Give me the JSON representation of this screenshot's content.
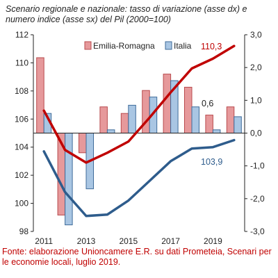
{
  "title_text": "Scenario regionale e nazionale: tasso di variazione (asse dx) e numero indice (asse sx) del Pil (2000=100)",
  "source_text": "Fonte: elaborazione Unioncamere E.R. su dati Prometeia, Scenari per le economie locali, luglio 2019.",
  "colors": {
    "emilia_bar_fill": "#e6999b",
    "emilia_bar_stroke": "#b84a4d",
    "italia_bar_fill": "#a9c6e3",
    "italia_bar_stroke": "#3e6b99",
    "emilia_line": "#c00000",
    "italia_line": "#2e5c8c"
  },
  "chart_data": {
    "type": "bar+line",
    "title": "Scenario regionale e nazionale: tasso di variazione (asse dx) e numero indice (asse sx) del Pil (2000=100)",
    "x_categories": [
      2011,
      2012,
      2013,
      2014,
      2015,
      2016,
      2017,
      2018,
      2019,
      2020
    ],
    "x_tick_labels": [
      "2011",
      "2013",
      "2015",
      "2017",
      "2019"
    ],
    "y_left": {
      "range": [
        98,
        112
      ],
      "ticks": [
        "98",
        "100",
        "102",
        "104",
        "106",
        "108",
        "110",
        "112"
      ]
    },
    "y_right": {
      "range": [
        -3.0,
        3.0
      ],
      "ticks": [
        "3,0",
        "2,0",
        "1,0",
        "0,0",
        "-1,0",
        "-2,0",
        "-3,0"
      ]
    },
    "legend": {
      "position": "top",
      "entries": [
        "Emilia-Romagna",
        "Italia"
      ]
    },
    "bars_right_axis": [
      {
        "name": "Emilia-Romagna",
        "values": [
          2.3,
          -2.5,
          -0.6,
          0.8,
          0.6,
          1.3,
          1.8,
          1.4,
          0.55,
          0.8
        ]
      },
      {
        "name": "Italia",
        "values": [
          0.6,
          -2.8,
          -1.7,
          0.1,
          0.85,
          1.1,
          1.6,
          0.8,
          0.1,
          0.5
        ]
      }
    ],
    "lines_left_axis": [
      {
        "name": "Emilia-Romagna",
        "values": [
          106.6,
          103.8,
          102.9,
          103.6,
          104.4,
          106.1,
          107.9,
          109.6,
          110.3,
          111.2
        ]
      },
      {
        "name": "Italia",
        "values": [
          103.7,
          100.8,
          99.1,
          99.2,
          100.2,
          101.6,
          103.0,
          103.9,
          104.0,
          104.5
        ]
      }
    ],
    "annotations": [
      {
        "text": "110,3"
      },
      {
        "text": "0,6"
      },
      {
        "text": "103,9"
      }
    ]
  }
}
